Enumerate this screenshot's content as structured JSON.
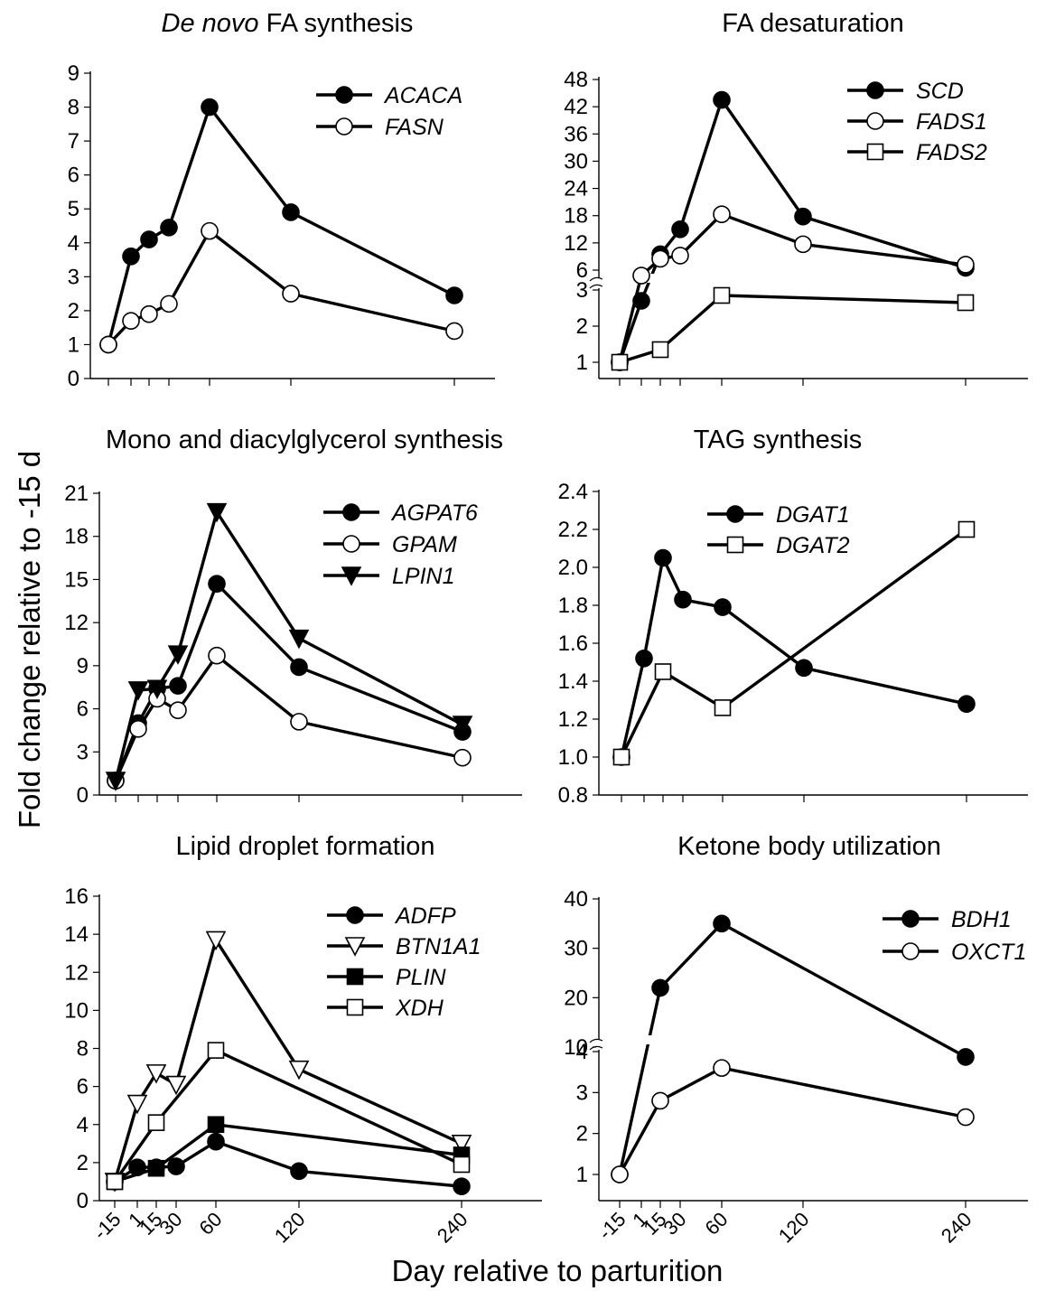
{
  "figure": {
    "ylabel": "Fold change relative to -15 d",
    "xlabel": "Day relative to parturition"
  },
  "chart_data": [
    {
      "type": "line",
      "title": "FA synthesis",
      "title_italic_prefix": "De novo",
      "x": [
        -15,
        1,
        15,
        30,
        60,
        120,
        240
      ],
      "x_tick_labels": [],
      "ylim": [
        0,
        9
      ],
      "y_ticks": [
        0,
        1,
        2,
        3,
        4,
        5,
        6,
        7,
        8,
        9
      ],
      "legend": "top-right",
      "series": [
        {
          "name": "ACACA",
          "marker": "filled-circle",
          "values": [
            1,
            3.6,
            4.1,
            4.45,
            8.0,
            4.9,
            2.45
          ]
        },
        {
          "name": "FASN",
          "marker": "open-circle",
          "values": [
            1,
            1.7,
            1.9,
            2.2,
            4.35,
            2.5,
            1.4
          ]
        }
      ]
    },
    {
      "type": "line",
      "title": "FA desaturation",
      "x": [
        -15,
        1,
        15,
        30,
        60,
        120,
        240
      ],
      "x_tick_labels": [],
      "y_axis_break": true,
      "y_ticks_lower": [
        1,
        2,
        3
      ],
      "y_ticks_upper": [
        6,
        12,
        18,
        24,
        30,
        36,
        42,
        48
      ],
      "legend": "top-right",
      "series": [
        {
          "name": "SCD",
          "marker": "filled-circle",
          "values": [
            1,
            2.7,
            9.5,
            15,
            43.5,
            17.8,
            6.5
          ]
        },
        {
          "name": "FADS1",
          "marker": "open-circle",
          "values": [
            1,
            4.8,
            8.5,
            9.2,
            18.3,
            11.7,
            7.2
          ]
        },
        {
          "name": "FADS2",
          "marker": "open-square",
          "x": [
            -15,
            15,
            60,
            240
          ],
          "values": [
            1,
            1.35,
            2.85,
            2.65
          ]
        }
      ]
    },
    {
      "type": "line",
      "title": "Mono and diacylglycerol synthesis",
      "x": [
        -15,
        1,
        15,
        30,
        60,
        120,
        240
      ],
      "x_tick_labels": [],
      "ylim": [
        0,
        21
      ],
      "y_ticks": [
        0,
        3,
        6,
        9,
        12,
        15,
        18,
        21
      ],
      "legend": "top-right",
      "series": [
        {
          "name": "AGPAT6",
          "marker": "filled-circle",
          "values": [
            1,
            5.0,
            7.4,
            7.6,
            14.7,
            8.9,
            4.4
          ]
        },
        {
          "name": "GPAM",
          "marker": "open-circle",
          "values": [
            1,
            4.6,
            6.7,
            5.9,
            9.7,
            5.1,
            2.6
          ]
        },
        {
          "name": "LPIN1",
          "marker": "filled-triangle-down",
          "values": [
            1,
            7.3,
            7.4,
            9.8,
            19.7,
            10.9,
            4.9
          ]
        }
      ]
    },
    {
      "type": "line",
      "title": "TAG synthesis",
      "x": [
        -15,
        1,
        15,
        30,
        60,
        120,
        240
      ],
      "x_tick_labels": [],
      "ylim": [
        0.8,
        2.4
      ],
      "y_ticks": [
        "0.8",
        "1.0",
        "1.2",
        "1.4",
        "1.6",
        "1.8",
        "2.0",
        "2.2",
        "2.4"
      ],
      "legend": "top-center",
      "series": [
        {
          "name": "DGAT1",
          "marker": "filled-circle",
          "values": [
            1.0,
            1.52,
            2.05,
            1.83,
            1.79,
            1.47,
            1.28
          ]
        },
        {
          "name": "DGAT2",
          "marker": "open-square",
          "x": [
            -15,
            15,
            60,
            240
          ],
          "values": [
            1.0,
            1.45,
            1.26,
            2.2
          ]
        }
      ]
    },
    {
      "type": "line",
      "title": "Lipid droplet formation",
      "x": [
        -15,
        1,
        15,
        30,
        60,
        120,
        240
      ],
      "x_tick_labels": [
        "-15",
        "1",
        "15",
        "30",
        "60",
        "120",
        "240"
      ],
      "ylim": [
        0,
        16
      ],
      "y_ticks": [
        0,
        2,
        4,
        6,
        8,
        10,
        12,
        14,
        16
      ],
      "legend": "top-right",
      "series": [
        {
          "name": "ADFP",
          "marker": "filled-circle",
          "values": [
            1,
            1.75,
            1.75,
            1.8,
            3.1,
            1.55,
            0.75
          ]
        },
        {
          "name": "BTN1A1",
          "marker": "open-triangle-down",
          "values": [
            1,
            5.1,
            6.7,
            6.1,
            13.7,
            6.9,
            3.0
          ]
        },
        {
          "name": "PLIN",
          "marker": "filled-square",
          "x": [
            -15,
            15,
            60,
            240
          ],
          "values": [
            1,
            1.7,
            4.0,
            2.4
          ]
        },
        {
          "name": "XDH",
          "marker": "open-square",
          "x": [
            -15,
            15,
            60,
            240
          ],
          "values": [
            1,
            4.1,
            7.9,
            1.9
          ]
        }
      ]
    },
    {
      "type": "line",
      "title": "Ketone body utilization",
      "x": [
        -15,
        15,
        60,
        240
      ],
      "x_tick_labels": [
        "-15",
        "1",
        "15",
        "30",
        "60",
        "120",
        "240"
      ],
      "y_axis_break": true,
      "y_ticks_lower": [
        1,
        2,
        3,
        4
      ],
      "y_ticks_upper": [
        10,
        20,
        30,
        40
      ],
      "legend": "top-right",
      "series": [
        {
          "name": "BDH1",
          "marker": "filled-circle",
          "values": [
            1,
            22,
            35,
            8
          ]
        },
        {
          "name": "OXCT1",
          "marker": "open-circle",
          "values": [
            1,
            2.8,
            3.6,
            2.4
          ]
        }
      ]
    }
  ]
}
